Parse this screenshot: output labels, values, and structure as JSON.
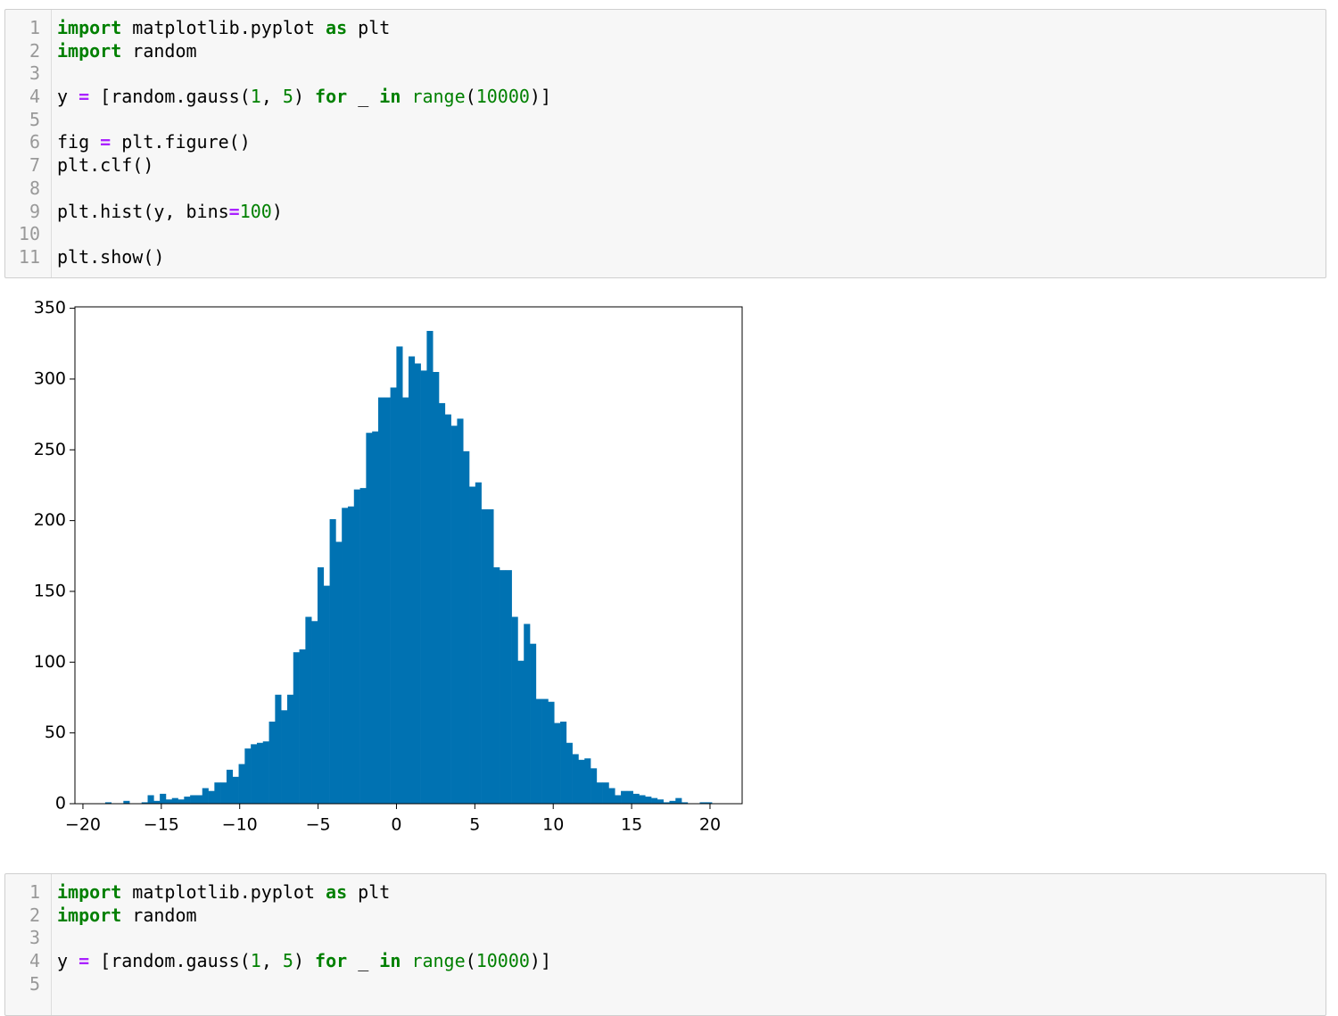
{
  "cells": [
    {
      "lines": [
        {
          "number": 1,
          "tokens": [
            {
              "text": "import",
              "color": "#008000",
              "bold": true
            },
            {
              "text": " matplotlib.pyplot "
            },
            {
              "text": "as",
              "color": "#008000",
              "bold": true
            },
            {
              "text": " plt"
            }
          ]
        },
        {
          "number": 2,
          "tokens": [
            {
              "text": "import",
              "color": "#008000",
              "bold": true
            },
            {
              "text": " random"
            }
          ]
        },
        {
          "number": 3,
          "tokens": []
        },
        {
          "number": 4,
          "tokens": [
            {
              "text": "y "
            },
            {
              "text": "=",
              "color": "#aa22ff",
              "bold": true
            },
            {
              "text": " [random.gauss("
            },
            {
              "text": "1",
              "color": "#008000"
            },
            {
              "text": ", "
            },
            {
              "text": "5",
              "color": "#008000"
            },
            {
              "text": ") "
            },
            {
              "text": "for",
              "color": "#008000",
              "bold": true
            },
            {
              "text": " _ "
            },
            {
              "text": "in",
              "color": "#008000",
              "bold": true
            },
            {
              "text": " "
            },
            {
              "text": "range",
              "color": "#008000"
            },
            {
              "text": "("
            },
            {
              "text": "10000",
              "color": "#008000"
            },
            {
              "text": ")]"
            }
          ]
        },
        {
          "number": 5,
          "tokens": []
        },
        {
          "number": 6,
          "tokens": [
            {
              "text": "fig "
            },
            {
              "text": "=",
              "color": "#aa22ff",
              "bold": true
            },
            {
              "text": " plt.figure()"
            }
          ]
        },
        {
          "number": 7,
          "tokens": [
            {
              "text": "plt.clf()"
            }
          ]
        },
        {
          "number": 8,
          "tokens": []
        },
        {
          "number": 9,
          "tokens": [
            {
              "text": "plt.hist(y, bins"
            },
            {
              "text": "=",
              "color": "#aa22ff",
              "bold": true
            },
            {
              "text": "100",
              "color": "#008000"
            },
            {
              "text": ")"
            }
          ]
        },
        {
          "number": 10,
          "tokens": []
        },
        {
          "number": 11,
          "tokens": [
            {
              "text": "plt.show()"
            }
          ]
        }
      ]
    },
    {
      "lines": [
        {
          "number": 1,
          "tokens": [
            {
              "text": "import",
              "color": "#008000",
              "bold": true
            },
            {
              "text": " matplotlib.pyplot "
            },
            {
              "text": "as",
              "color": "#008000",
              "bold": true
            },
            {
              "text": " plt"
            }
          ]
        },
        {
          "number": 2,
          "tokens": [
            {
              "text": "import",
              "color": "#008000",
              "bold": true
            },
            {
              "text": " random"
            }
          ]
        },
        {
          "number": 3,
          "tokens": []
        },
        {
          "number": 4,
          "tokens": [
            {
              "text": "y "
            },
            {
              "text": "=",
              "color": "#aa22ff",
              "bold": true
            },
            {
              "text": " [random.gauss("
            },
            {
              "text": "1",
              "color": "#008000"
            },
            {
              "text": ", "
            },
            {
              "text": "5",
              "color": "#008000"
            },
            {
              "text": ") "
            },
            {
              "text": "for",
              "color": "#008000",
              "bold": true
            },
            {
              "text": " _ "
            },
            {
              "text": "in",
              "color": "#008000",
              "bold": true
            },
            {
              "text": " "
            },
            {
              "text": "range",
              "color": "#008000"
            },
            {
              "text": "("
            },
            {
              "text": "10000",
              "color": "#008000"
            },
            {
              "text": ")]"
            }
          ]
        },
        {
          "number": 5,
          "tokens": []
        }
      ]
    }
  ],
  "chart_data": {
    "type": "histogram",
    "color": "#0072b2",
    "bins": [
      -18.58,
      -18.193,
      -17.806,
      -17.419,
      -17.032,
      -16.645,
      -16.258,
      -15.871,
      -15.484,
      -15.097,
      -14.71,
      -14.323,
      -13.936,
      -13.549,
      -13.162,
      -12.775,
      -12.388,
      -12.001,
      -11.614,
      -11.227,
      -10.84,
      -10.453,
      -10.066,
      -9.679,
      -9.292,
      -8.905,
      -8.518,
      -8.131,
      -7.744,
      -7.357,
      -6.97,
      -6.583,
      -6.196,
      -5.809,
      -5.422,
      -5.035,
      -4.648,
      -4.261,
      -3.874,
      -3.487,
      -3.1,
      -2.713,
      -2.326,
      -1.939,
      -1.552,
      -1.165,
      -0.778,
      -0.391,
      -0.004,
      0.383,
      0.77,
      1.157,
      1.544,
      1.931,
      2.318,
      2.705,
      3.092,
      3.479,
      3.866,
      4.253,
      4.64,
      5.027,
      5.414,
      5.801,
      6.188,
      6.575,
      6.962,
      7.349,
      7.736,
      8.123,
      8.51,
      8.897,
      9.284,
      9.671,
      10.058,
      10.445,
      10.832,
      11.219,
      11.606,
      11.993,
      12.38,
      12.767,
      13.154,
      13.541,
      13.928,
      14.315,
      14.702,
      15.089,
      15.476,
      15.863,
      16.25,
      16.637,
      17.024,
      17.411,
      17.798,
      18.185,
      18.572,
      18.959,
      19.346,
      19.733,
      20.12
    ],
    "values": [
      1,
      0,
      0,
      2,
      0,
      0,
      1,
      6,
      2,
      7,
      3,
      4,
      3,
      5,
      6,
      6,
      11,
      9,
      15,
      15,
      24,
      19,
      28,
      39,
      42,
      43,
      44,
      58,
      77,
      66,
      77,
      107,
      109,
      132,
      129,
      167,
      154,
      201,
      185,
      209,
      210,
      222,
      223,
      262,
      263,
      287,
      287,
      294,
      323,
      287,
      316,
      311,
      306,
      334,
      305,
      283,
      275,
      267,
      272,
      249,
      224,
      227,
      208,
      208,
      167,
      165,
      165,
      132,
      101,
      127,
      113,
      74,
      74,
      72,
      57,
      58,
      43,
      35,
      31,
      32,
      25,
      15,
      15,
      11,
      6,
      9,
      9,
      7,
      6,
      5,
      4,
      3,
      1,
      2,
      4,
      1,
      0,
      0,
      1,
      1
    ],
    "xlim": [
      -20.51,
      22.05
    ],
    "xticks": [
      {
        "value": -20,
        "label": "−20"
      },
      {
        "value": -15,
        "label": "−15"
      },
      {
        "value": -10,
        "label": "−10"
      },
      {
        "value": -5,
        "label": "−5"
      },
      0,
      5,
      10,
      15,
      20
    ],
    "ylim": [
      0,
      351
    ],
    "yticks": [
      0,
      50,
      100,
      150,
      200,
      250,
      300,
      350
    ]
  }
}
